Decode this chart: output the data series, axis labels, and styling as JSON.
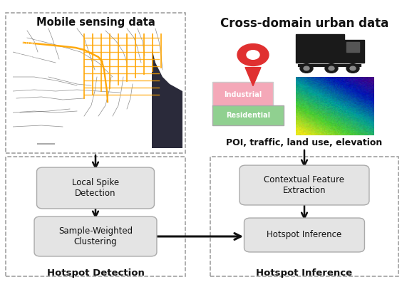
{
  "left_section_title": "Mobile sensing data",
  "right_section_title": "Cross-domain urban data",
  "poi_label": "POI, traffic, land use, elevation",
  "box1_text": "Local Spike\nDetection",
  "box2_text": "Sample-Weighted\nClustering",
  "box3_text": "Contextual Feature\nExtraction",
  "box4_text": "Hotspot Inference",
  "bottom_left_label": "Hotspot Detection",
  "bottom_right_label": "Hotspot Inference",
  "bg_color": "#ffffff",
  "box_facecolor": "#e4e4e4",
  "box_edgecolor": "#aaaaaa",
  "pin_color": "#e03030",
  "arrow_color": "#111111",
  "dashed_border_color": "#999999",
  "industrial_color": "#f4a8b8",
  "residential_color": "#90d090",
  "map_bg": "#444444"
}
